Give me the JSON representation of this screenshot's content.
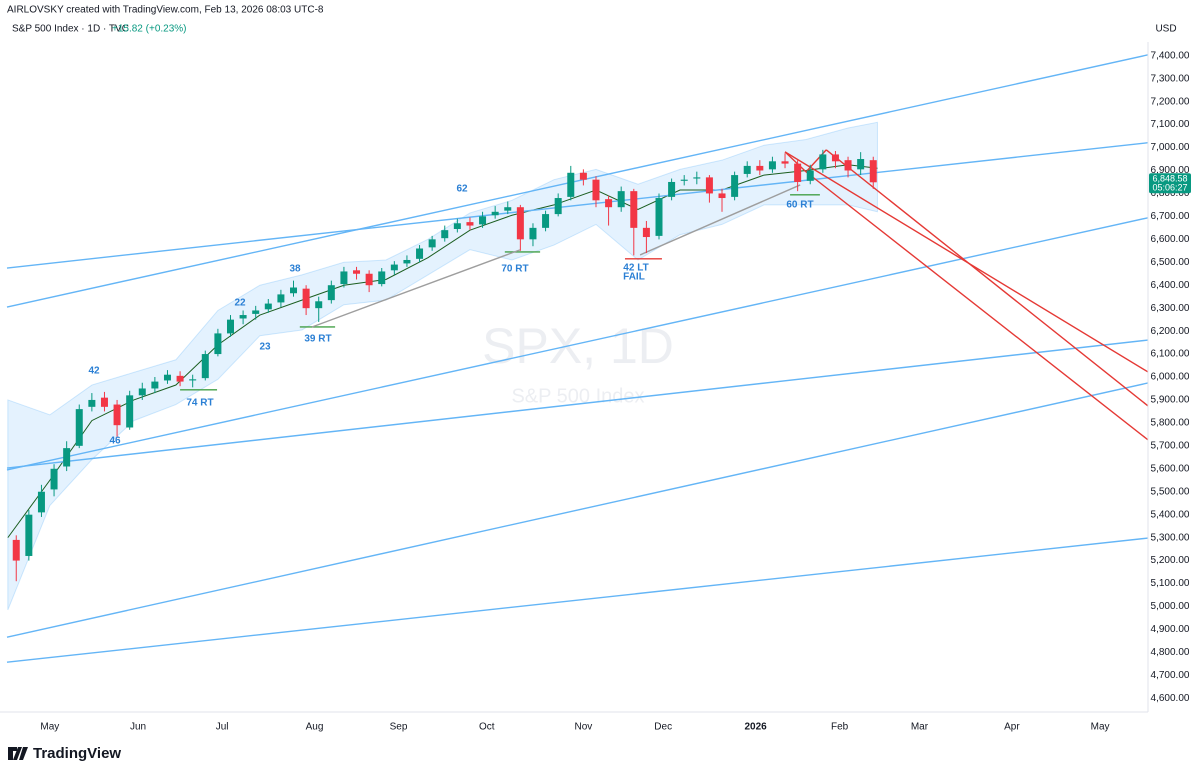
{
  "chart_data": {
    "type": "candlestick",
    "credit": "AIRLOVSKY created with TradingView.com, Feb 13, 2026 08:03 UTC-8",
    "title": "S&P 500 Index · 1D · TVC",
    "change": "+15.82 (+0.23%)",
    "unit": "USD",
    "watermark": "SPX, 1D",
    "watermark_subtitle": "S&P 500 Index",
    "brand": "TradingView",
    "last_price_label": "6,848.58",
    "countdown": "05:06:27",
    "up_color": "#089981",
    "down_color": "#f23645",
    "grid": false,
    "xlim": [
      -10.2,
      261.4
    ],
    "xticks": [
      {
        "value": 0,
        "label": "May"
      },
      {
        "value": 21,
        "label": "Jun"
      },
      {
        "value": 41,
        "label": "Jul"
      },
      {
        "value": 63,
        "label": "Aug"
      },
      {
        "value": 83,
        "label": "Sep"
      },
      {
        "value": 104,
        "label": "Oct"
      },
      {
        "value": 127,
        "label": "Nov"
      },
      {
        "value": 146,
        "label": "Dec"
      },
      {
        "value": 168,
        "label": "2026"
      },
      {
        "value": 188,
        "label": "Feb"
      },
      {
        "value": 207,
        "label": "Mar"
      },
      {
        "value": 229,
        "label": "Apr"
      },
      {
        "value": 250,
        "label": "May"
      }
    ],
    "ylim": [
      4540,
      7460
    ],
    "yticks": [
      {
        "value": 4600,
        "label": "4,600.00"
      },
      {
        "value": 4700,
        "label": "4,700.00"
      },
      {
        "value": 4800,
        "label": "4,800.00"
      },
      {
        "value": 4900,
        "label": "4,900.00"
      },
      {
        "value": 5000,
        "label": "5,000.00"
      },
      {
        "value": 5100,
        "label": "5,100.00"
      },
      {
        "value": 5200,
        "label": "5,200.00"
      },
      {
        "value": 5300,
        "label": "5,300.00"
      },
      {
        "value": 5400,
        "label": "5,400.00"
      },
      {
        "value": 5500,
        "label": "5,500.00"
      },
      {
        "value": 5600,
        "label": "5,600.00"
      },
      {
        "value": 5700,
        "label": "5,700.00"
      },
      {
        "value": 5800,
        "label": "5,800.00"
      },
      {
        "value": 5900,
        "label": "5,900.00"
      },
      {
        "value": 6000,
        "label": "6,000.00"
      },
      {
        "value": 6100,
        "label": "6,100.00"
      },
      {
        "value": 6200,
        "label": "6,200.00"
      },
      {
        "value": 6300,
        "label": "6,300.00"
      },
      {
        "value": 6400,
        "label": "6,400.00"
      },
      {
        "value": 6500,
        "label": "6,500.00"
      },
      {
        "value": 6600,
        "label": "6,600.00"
      },
      {
        "value": 6700,
        "label": "6,700.00"
      },
      {
        "value": 6800,
        "label": "6,800.00"
      },
      {
        "value": 6900,
        "label": "6,900.00"
      },
      {
        "value": 7000,
        "label": "7,000.00"
      },
      {
        "value": 7100,
        "label": "7,100.00"
      },
      {
        "value": 7200,
        "label": "7,200.00"
      },
      {
        "value": 7300,
        "label": "7,300.00"
      },
      {
        "value": 7400,
        "label": "7,400.00"
      }
    ],
    "x": [
      -8,
      -5,
      -2,
      1,
      4,
      7,
      10,
      13,
      16,
      19,
      22,
      25,
      28,
      31,
      34,
      37,
      40,
      43,
      46,
      49,
      52,
      55,
      58,
      61,
      64,
      67,
      70,
      73,
      76,
      79,
      82,
      85,
      88,
      91,
      94,
      97,
      100,
      103,
      106,
      109,
      112,
      115,
      118,
      121,
      124,
      127,
      130,
      133,
      136,
      139,
      142,
      145,
      148,
      151,
      154,
      157,
      160,
      163,
      166,
      169,
      172,
      175,
      178,
      181,
      184,
      187,
      190,
      193,
      196
    ],
    "open": [
      5290,
      5220,
      5410,
      5510,
      5610,
      5700,
      5870,
      5910,
      5880,
      5780,
      5920,
      5950,
      5985,
      6005,
      5985,
      5995,
      6100,
      6190,
      6255,
      6275,
      6295,
      6325,
      6365,
      6385,
      6300,
      6335,
      6405,
      6465,
      6450,
      6405,
      6465,
      6495,
      6515,
      6565,
      6605,
      6645,
      6675,
      6665,
      6705,
      6725,
      6740,
      6600,
      6650,
      6710,
      6785,
      6890,
      6860,
      6775,
      6740,
      6810,
      6650,
      6615,
      6785,
      6855,
      6865,
      6870,
      6800,
      6785,
      6885,
      6920,
      6905,
      6940,
      6930,
      6855,
      6905,
      6970,
      6945,
      6905,
      6945
    ],
    "high": [
      5310,
      5420,
      5530,
      5620,
      5720,
      5880,
      5930,
      5935,
      5900,
      5940,
      5975,
      6000,
      6030,
      6025,
      6010,
      6115,
      6210,
      6270,
      6290,
      6310,
      6340,
      6380,
      6420,
      6400,
      6350,
      6420,
      6480,
      6480,
      6465,
      6475,
      6505,
      6530,
      6575,
      6615,
      6660,
      6690,
      6695,
      6720,
      6745,
      6765,
      6750,
      6670,
      6725,
      6800,
      6920,
      6905,
      6875,
      6790,
      6830,
      6820,
      6680,
      6800,
      6865,
      6880,
      6895,
      6880,
      6820,
      6895,
      6940,
      6945,
      6960,
      6975,
      6945,
      6925,
      6990,
      6985,
      6960,
      6980,
      6960
    ],
    "low": [
      5110,
      5200,
      5390,
      5480,
      5590,
      5690,
      5850,
      5850,
      5740,
      5770,
      5900,
      5930,
      5970,
      5960,
      5955,
      5985,
      6090,
      6175,
      6230,
      6250,
      6280,
      6305,
      6350,
      6270,
      6240,
      6320,
      6390,
      6425,
      6370,
      6395,
      6445,
      6480,
      6500,
      6550,
      6590,
      6630,
      6640,
      6650,
      6690,
      6710,
      6550,
      6570,
      6635,
      6700,
      6770,
      6835,
      6740,
      6660,
      6720,
      6530,
      6540,
      6600,
      6770,
      6835,
      6840,
      6760,
      6720,
      6770,
      6870,
      6880,
      6890,
      6910,
      6810,
      6840,
      6890,
      6910,
      6870,
      6880,
      6820
    ],
    "close": [
      5200,
      5400,
      5500,
      5600,
      5690,
      5860,
      5900,
      5870,
      5790,
      5920,
      5950,
      5980,
      6010,
      5980,
      5990,
      6100,
      6190,
      6250,
      6270,
      6290,
      6320,
      6360,
      6390,
      6300,
      6330,
      6400,
      6460,
      6450,
      6400,
      6460,
      6490,
      6510,
      6560,
      6600,
      6640,
      6670,
      6660,
      6700,
      6720,
      6740,
      6600,
      6650,
      6710,
      6780,
      6890,
      6860,
      6770,
      6740,
      6810,
      6650,
      6610,
      6780,
      6850,
      6860,
      6870,
      6800,
      6780,
      6880,
      6920,
      6900,
      6940,
      6930,
      6850,
      6900,
      6970,
      6940,
      6900,
      6950,
      6848.58
    ],
    "band": {
      "color": "#2196f3",
      "middle_color": "#1b5e20",
      "x": [
        -10,
        0,
        10,
        20,
        30,
        40,
        50,
        60,
        70,
        80,
        90,
        100,
        110,
        120,
        130,
        140,
        150,
        160,
        170,
        180,
        190,
        197
      ],
      "upper": [
        5900,
        5835,
        5965,
        6020,
        6075,
        6290,
        6400,
        6445,
        6500,
        6510,
        6600,
        6715,
        6770,
        6860,
        6905,
        6840,
        6905,
        6945,
        7010,
        7035,
        7085,
        7110
      ],
      "lower": [
        4985,
        5440,
        5640,
        5810,
        5880,
        5990,
        6180,
        6205,
        6315,
        6335,
        6445,
        6555,
        6510,
        6575,
        6665,
        6510,
        6620,
        6665,
        6750,
        6750,
        6750,
        6720
      ],
      "middle": [
        5300,
        5550,
        5810,
        5900,
        5965,
        6140,
        6270,
        6335,
        6400,
        6425,
        6520,
        6640,
        6705,
        6750,
        6815,
        6730,
        6815,
        6815,
        6880,
        6900,
        6925,
        6910
      ]
    },
    "lines": [
      {
        "color": "#64b5f6",
        "x": [
          -10.2,
          261.4
        ],
        "y": [
          6305,
          7404
        ]
      },
      {
        "color": "#64b5f6",
        "x": [
          -10.2,
          261.4
        ],
        "y": [
          6475,
          7021
        ]
      },
      {
        "color": "#64b5f6",
        "x": [
          -10.2,
          261.4
        ],
        "y": [
          5595,
          6694
        ]
      },
      {
        "color": "#64b5f6",
        "x": [
          -10.2,
          261.4
        ],
        "y": [
          5603,
          6161
        ]
      },
      {
        "color": "#64b5f6",
        "x": [
          -10.2,
          261.4
        ],
        "y": [
          4866,
          5974
        ]
      },
      {
        "color": "#64b5f6",
        "x": [
          -10.2,
          261.4
        ],
        "y": [
          4757,
          5298
        ]
      },
      {
        "color": "#e53935",
        "x": [
          175.0,
          261.4
        ],
        "y": [
          6981,
          6022
        ]
      },
      {
        "color": "#e53935",
        "x": [
          184.8,
          261.4
        ],
        "y": [
          6990,
          5874
        ]
      },
      {
        "color": "#e53935",
        "x": [
          180.0,
          261.4
        ],
        "y": [
          6894,
          5726
        ]
      },
      {
        "color": "#e53935",
        "x": [
          175.0,
          180.0
        ],
        "y": [
          6981,
          6894
        ]
      },
      {
        "color": "#e53935",
        "x": [
          180.0,
          184.8
        ],
        "y": [
          6894,
          6990
        ]
      },
      {
        "color": "#43a047",
        "x": [
          31.0,
          39.8
        ],
        "y": [
          5944,
          5944
        ]
      },
      {
        "color": "#43a047",
        "x": [
          59.5,
          67.9
        ],
        "y": [
          6218,
          6218
        ]
      },
      {
        "color": "#43a047",
        "x": [
          108.3,
          116.7
        ],
        "y": [
          6545,
          6545
        ]
      },
      {
        "color": "#43a047",
        "x": [
          176.2,
          183.3
        ],
        "y": [
          6794,
          6794
        ]
      },
      {
        "color": "#e53935",
        "x": [
          136.9,
          145.7
        ],
        "y": [
          6515,
          6515
        ]
      },
      {
        "color": "#9e9e9e",
        "x": [
          62.4,
          111.9
        ],
        "y": [
          6218,
          6554
        ]
      },
      {
        "color": "#9e9e9e",
        "x": [
          140.5,
          178.6
        ],
        "y": [
          6532,
          6837
        ]
      }
    ],
    "annotations": [
      "42",
      "46",
      "74 RT",
      "22",
      "23",
      "38",
      "39 RT",
      "62",
      "70 RT",
      "42 LT",
      "FAIL",
      "60 RT"
    ]
  }
}
